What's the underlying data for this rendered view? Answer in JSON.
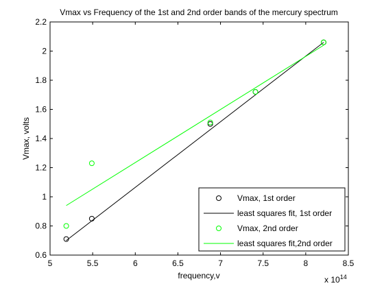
{
  "chart_data": {
    "type": "scatter",
    "title": "Vmax vs Frequency of the 1st and 2nd order bands of the mercury spectrum",
    "xlabel": "frequency,v",
    "ylabel": "Vmax, volts",
    "x_exponent_label": "x 10",
    "x_exponent_power": "14",
    "xlim": [
      5,
      8.5
    ],
    "ylim": [
      0.6,
      2.2
    ],
    "xticks": [
      "5",
      "5.5",
      "6",
      "6.5",
      "7",
      "7.5",
      "8",
      "8.5"
    ],
    "yticks": [
      "0.6",
      "0.8",
      "1",
      "1.2",
      "1.4",
      "1.6",
      "1.8",
      "2",
      "2.2"
    ],
    "x_tick_values": [
      5,
      5.5,
      6,
      6.5,
      7,
      7.5,
      8,
      8.5
    ],
    "y_tick_values": [
      0.6,
      0.8,
      1.0,
      1.2,
      1.4,
      1.6,
      1.8,
      2.0,
      2.2
    ],
    "grid": false,
    "legend_position": "bottom-right",
    "series": [
      {
        "name": "Vmax, 1st order",
        "kind": "markers",
        "marker": "circle",
        "color": "#000000",
        "x": [
          5.19,
          5.49,
          6.88,
          7.41,
          8.21
        ],
        "y": [
          0.71,
          0.85,
          1.5,
          1.72,
          2.06
        ]
      },
      {
        "name": "least squares fit, 1st order",
        "kind": "line",
        "color": "#000000",
        "x": [
          5.19,
          8.21
        ],
        "y": [
          0.7,
          2.06
        ]
      },
      {
        "name": "Vmax, 2nd order",
        "kind": "markers",
        "marker": "circle",
        "color": "#00ff00",
        "x": [
          5.19,
          5.49,
          6.88,
          7.41,
          8.21
        ],
        "y": [
          0.8,
          1.23,
          1.51,
          1.72,
          2.06
        ]
      },
      {
        "name": "least squares fit,2nd order",
        "kind": "line",
        "color": "#00ff00",
        "x": [
          5.19,
          8.21
        ],
        "y": [
          0.94,
          2.04
        ]
      }
    ]
  }
}
